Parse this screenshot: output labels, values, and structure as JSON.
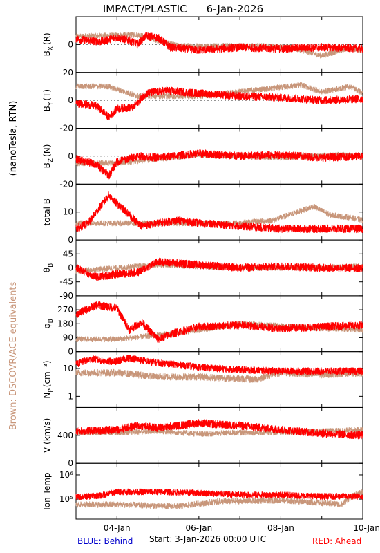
{
  "header": {
    "title": "IMPACT/PLASTIC",
    "date": "6-Jan-2026"
  },
  "side_labels": {
    "units": "(nanoTesla, RTN)",
    "equivalents": "Brown: DSCOVR/ACE equivalents"
  },
  "footer": {
    "behind": "BLUE: Behind",
    "start": "Start:  3-Jan-2026 00:00 UTC",
    "ahead": "RED: Ahead"
  },
  "colors": {
    "ahead": "#ff0000",
    "dscovr": "#c8967a",
    "behind": "#0000cc",
    "axis": "#000000"
  },
  "chart_data": {
    "type": "line",
    "x_axis": {
      "range": [
        "2026-01-03",
        "2026-01-10"
      ],
      "tick_labels": [
        "04-Jan",
        "06-Jan",
        "08-Jan",
        "10-Jan"
      ]
    },
    "panels": [
      {
        "id": "bx",
        "ylabel_main": "B",
        "ylabel_sub": "X",
        "ylabel_suffix": "(R)",
        "ylim": [
          -20,
          20
        ],
        "ticks": [
          "0",
          "-20"
        ],
        "tick_values": [
          0,
          -20
        ],
        "series": [
          {
            "name": "Ahead",
            "color": "red",
            "keys": [
              [
                0,
                4
              ],
              [
                0.6,
                2
              ],
              [
                1,
                5
              ],
              [
                1.3,
                3
              ],
              [
                1.5,
                0
              ],
              [
                1.7,
                6
              ],
              [
                2,
                5
              ],
              [
                2.3,
                -2
              ],
              [
                3,
                -4
              ],
              [
                4,
                -2
              ],
              [
                5,
                -3
              ],
              [
                6,
                -2
              ],
              [
                7,
                -3
              ]
            ]
          },
          {
            "name": "DSCOVR/ACE",
            "color": "brown",
            "keys": [
              [
                0.3,
                6
              ],
              [
                1.5,
                7
              ],
              [
                2.5,
                -1
              ],
              [
                4.6,
                -1
              ],
              [
                5.2,
                -2
              ],
              [
                6,
                -8
              ],
              [
                6.6,
                -3
              ],
              [
                7,
                -4
              ]
            ]
          }
        ]
      },
      {
        "id": "by",
        "ylabel_main": "B",
        "ylabel_sub": "Y",
        "ylabel_suffix": "(T)",
        "ylim": [
          -20,
          20
        ],
        "ticks": [
          "0",
          "-20"
        ],
        "tick_values": [
          0,
          -20
        ],
        "series": [
          {
            "name": "Ahead",
            "color": "red",
            "keys": [
              [
                0,
                -2
              ],
              [
                0.5,
                -4
              ],
              [
                0.8,
                -12
              ],
              [
                1,
                -6
              ],
              [
                1.4,
                -5
              ],
              [
                1.7,
                5
              ],
              [
                2.2,
                7
              ],
              [
                3,
                5
              ],
              [
                4,
                3
              ],
              [
                5,
                2
              ],
              [
                6,
                0
              ],
              [
                7,
                1
              ]
            ]
          },
          {
            "name": "DSCOVR/ACE",
            "color": "brown",
            "keys": [
              [
                0.8,
                10
              ],
              [
                1.5,
                3
              ],
              [
                3,
                3
              ],
              [
                5.5,
                11
              ],
              [
                6,
                6
              ],
              [
                6.7,
                10
              ],
              [
                7,
                5
              ]
            ]
          }
        ]
      },
      {
        "id": "bz",
        "ylabel_main": "B",
        "ylabel_sub": "Z",
        "ylabel_suffix": "(N)",
        "ylim": [
          -20,
          20
        ],
        "ticks": [
          "0",
          "-20"
        ],
        "tick_values": [
          0,
          -20
        ],
        "series": [
          {
            "name": "Ahead",
            "color": "red",
            "keys": [
              [
                0,
                -2
              ],
              [
                0.5,
                -6
              ],
              [
                0.8,
                -14
              ],
              [
                1,
                -4
              ],
              [
                1.5,
                0
              ],
              [
                2,
                -1
              ],
              [
                3,
                2
              ],
              [
                4,
                0
              ],
              [
                5,
                1
              ],
              [
                6,
                -1
              ],
              [
                7,
                0
              ]
            ]
          },
          {
            "name": "DSCOVR/ACE",
            "color": "brown",
            "keys": [
              [
                1,
                -5
              ],
              [
                3,
                1
              ],
              [
                5,
                -1
              ],
              [
                6.5,
                1
              ],
              [
                7,
                0
              ]
            ]
          }
        ]
      },
      {
        "id": "bt",
        "ylabel_main": "total B",
        "ylabel_sub": "",
        "ylabel_suffix": "",
        "ylim": [
          0,
          20
        ],
        "ticks": [
          "10",
          "0"
        ],
        "tick_values": [
          10,
          0
        ],
        "series": [
          {
            "name": "Ahead",
            "color": "red",
            "keys": [
              [
                0,
                4
              ],
              [
                0.3,
                6
              ],
              [
                0.6,
                12
              ],
              [
                0.8,
                16
              ],
              [
                1,
                13
              ],
              [
                1.3,
                9
              ],
              [
                1.6,
                5
              ],
              [
                2,
                6
              ],
              [
                2.5,
                7
              ],
              [
                3,
                6
              ],
              [
                4,
                5
              ],
              [
                5,
                4
              ],
              [
                6,
                4
              ],
              [
                7,
                4
              ]
            ]
          },
          {
            "name": "DSCOVR/ACE",
            "color": "brown",
            "keys": [
              [
                3.9,
                6
              ],
              [
                4.8,
                7
              ],
              [
                5.4,
                10
              ],
              [
                5.8,
                12
              ],
              [
                6.2,
                9
              ],
              [
                6.7,
                8
              ],
              [
                7,
                7
              ]
            ]
          }
        ]
      },
      {
        "id": "theta",
        "ylabel_main": "θ",
        "ylabel_sub": "B",
        "ylabel_suffix": "",
        "ylim": [
          -90,
          90
        ],
        "ticks": [
          "45",
          "0",
          "-45",
          "-90"
        ],
        "tick_values": [
          45,
          0,
          -45,
          -90
        ],
        "series": [
          {
            "name": "Ahead",
            "color": "red",
            "keys": [
              [
                0,
                0
              ],
              [
                0.5,
                -30
              ],
              [
                1,
                -20
              ],
              [
                1.5,
                -15
              ],
              [
                2,
                20
              ],
              [
                3,
                10
              ],
              [
                4,
                0
              ],
              [
                5,
                5
              ],
              [
                6,
                0
              ],
              [
                7,
                0
              ]
            ]
          },
          {
            "name": "DSCOVR/ACE",
            "color": "brown",
            "keys": [
              [
                0,
                -10
              ],
              [
                2,
                10
              ],
              [
                4,
                0
              ],
              [
                6,
                0
              ],
              [
                7,
                5
              ]
            ]
          }
        ]
      },
      {
        "id": "phi",
        "ylabel_main": "φ",
        "ylabel_sub": "B",
        "ylabel_suffix": "",
        "ylim": [
          0,
          360
        ],
        "ticks": [
          "270",
          "180",
          "90",
          "0"
        ],
        "tick_values": [
          270,
          180,
          90,
          0
        ],
        "series": [
          {
            "name": "Ahead",
            "color": "red",
            "keys": [
              [
                0,
                240
              ],
              [
                0.5,
                300
              ],
              [
                1,
                280
              ],
              [
                1.3,
                140
              ],
              [
                1.6,
                190
              ],
              [
                2,
                80
              ],
              [
                2.4,
                120
              ],
              [
                3,
                160
              ],
              [
                4,
                170
              ],
              [
                5,
                150
              ],
              [
                6,
                160
              ],
              [
                7,
                170
              ]
            ]
          },
          {
            "name": "DSCOVR/ACE",
            "color": "brown",
            "keys": [
              [
                1,
                80
              ],
              [
                2.5,
                120
              ],
              [
                4,
                180
              ],
              [
                6,
                150
              ],
              [
                7,
                140
              ]
            ]
          }
        ]
      },
      {
        "id": "np",
        "ylabel_main": "N",
        "ylabel_sub": "P",
        "ylabel_suffix": "(cm⁻³)",
        "ylim": [
          0.4,
          40
        ],
        "log": true,
        "ticks": [
          "10",
          "1"
        ],
        "tick_values": [
          10,
          1
        ],
        "series": [
          {
            "name": "Ahead",
            "color": "red",
            "keys": [
              [
                0,
                14
              ],
              [
                0.4,
                22
              ],
              [
                0.7,
                18
              ],
              [
                1,
                18
              ],
              [
                1.3,
                24
              ],
              [
                1.7,
                18
              ],
              [
                2,
                16
              ],
              [
                3,
                11
              ],
              [
                4,
                9
              ],
              [
                5,
                8
              ],
              [
                6,
                8
              ],
              [
                7,
                8
              ]
            ]
          },
          {
            "name": "DSCOVR/ACE",
            "color": "brown",
            "keys": [
              [
                1,
                7
              ],
              [
                2,
                5
              ],
              [
                3,
                5
              ],
              [
                4.4,
                4
              ],
              [
                5,
                7
              ],
              [
                6,
                6
              ],
              [
                7,
                7
              ]
            ]
          }
        ]
      },
      {
        "id": "v",
        "ylabel_main": "V (km/s)",
        "ylabel_sub": "",
        "ylabel_suffix": "",
        "ylim": [
          0,
          800
        ],
        "ticks": [
          "400",
          "0"
        ],
        "tick_values": [
          400,
          0
        ],
        "series": [
          {
            "name": "Ahead",
            "color": "red",
            "keys": [
              [
                0,
                460
              ],
              [
                0.5,
                470
              ],
              [
                1,
                480
              ],
              [
                1.5,
                540
              ],
              [
                2,
                510
              ],
              [
                2.5,
                540
              ],
              [
                3,
                580
              ],
              [
                3.6,
                550
              ],
              [
                4,
                540
              ],
              [
                5,
                480
              ],
              [
                6,
                430
              ],
              [
                7,
                400
              ]
            ]
          },
          {
            "name": "DSCOVR/ACE",
            "color": "brown",
            "keys": [
              [
                1,
                440
              ],
              [
                2,
                460
              ],
              [
                3,
                420
              ],
              [
                4,
                440
              ],
              [
                5,
                440
              ],
              [
                6,
                460
              ],
              [
                7,
                480
              ]
            ]
          }
        ]
      },
      {
        "id": "temp",
        "ylabel_main": "Ion Temp",
        "ylabel_sub": "",
        "ylabel_suffix": "",
        "ylim": [
          15000,
          3000000
        ],
        "log": true,
        "ticks": [
          "10⁶",
          "10⁵"
        ],
        "tick_values": [
          1000000,
          100000
        ],
        "series": [
          {
            "name": "Ahead",
            "color": "red",
            "keys": [
              [
                0,
                120000
              ],
              [
                0.6,
                140000
              ],
              [
                1,
                200000
              ],
              [
                2,
                200000
              ],
              [
                3,
                180000
              ],
              [
                4,
                150000
              ],
              [
                5,
                150000
              ],
              [
                6,
                130000
              ],
              [
                7,
                130000
              ]
            ]
          },
          {
            "name": "DSCOVR/ACE",
            "color": "brown",
            "keys": [
              [
                1,
                60000
              ],
              [
                2.5,
                50000
              ],
              [
                3.5,
                80000
              ],
              [
                5,
                90000
              ],
              [
                6.5,
                60000
              ],
              [
                7,
                200000
              ]
            ]
          }
        ]
      }
    ]
  }
}
